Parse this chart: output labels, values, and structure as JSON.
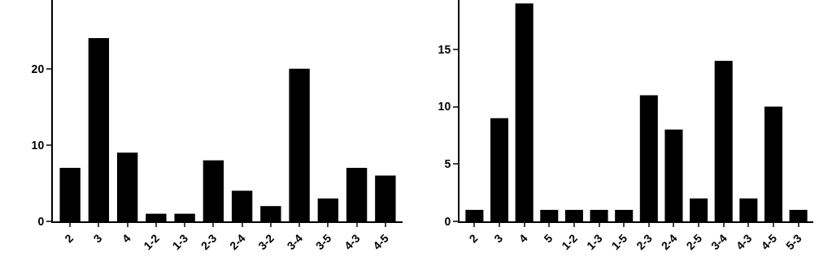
{
  "chart_data": [
    {
      "type": "bar",
      "categories": [
        "2",
        "3",
        "4",
        "1-2",
        "1-3",
        "2-3",
        "2-4",
        "3-2",
        "3-4",
        "3-5",
        "4-3",
        "4-5"
      ],
      "values": [
        7,
        24,
        9,
        1,
        1,
        8,
        4,
        2,
        20,
        3,
        7,
        6
      ],
      "color": "#000000",
      "ylim": [
        0,
        29
      ],
      "yticks": [
        0,
        10,
        20
      ]
    },
    {
      "type": "bar",
      "categories": [
        "2",
        "3",
        "4",
        "5",
        "1-2",
        "1-3",
        "1-5",
        "2-3",
        "2-4",
        "2-5",
        "3-4",
        "4-3",
        "4-5",
        "5-3"
      ],
      "values": [
        1,
        9,
        19,
        1,
        1,
        1,
        1,
        11,
        8,
        2,
        14,
        2,
        10,
        1
      ],
      "color": "#000000",
      "ylim": [
        0,
        19.3
      ],
      "yticks": [
        0,
        5,
        10,
        15
      ]
    }
  ]
}
